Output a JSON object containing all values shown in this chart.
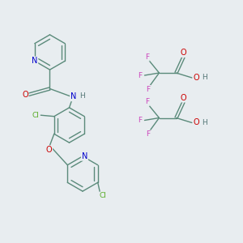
{
  "background_color": "#e8edf0",
  "bond_color": "#5a8a7a",
  "atom_colors": {
    "N": "#0000cc",
    "O": "#cc0000",
    "Cl": "#55aa22",
    "F": "#cc44bb",
    "H": "#557777",
    "C": "#5a8a7a"
  }
}
